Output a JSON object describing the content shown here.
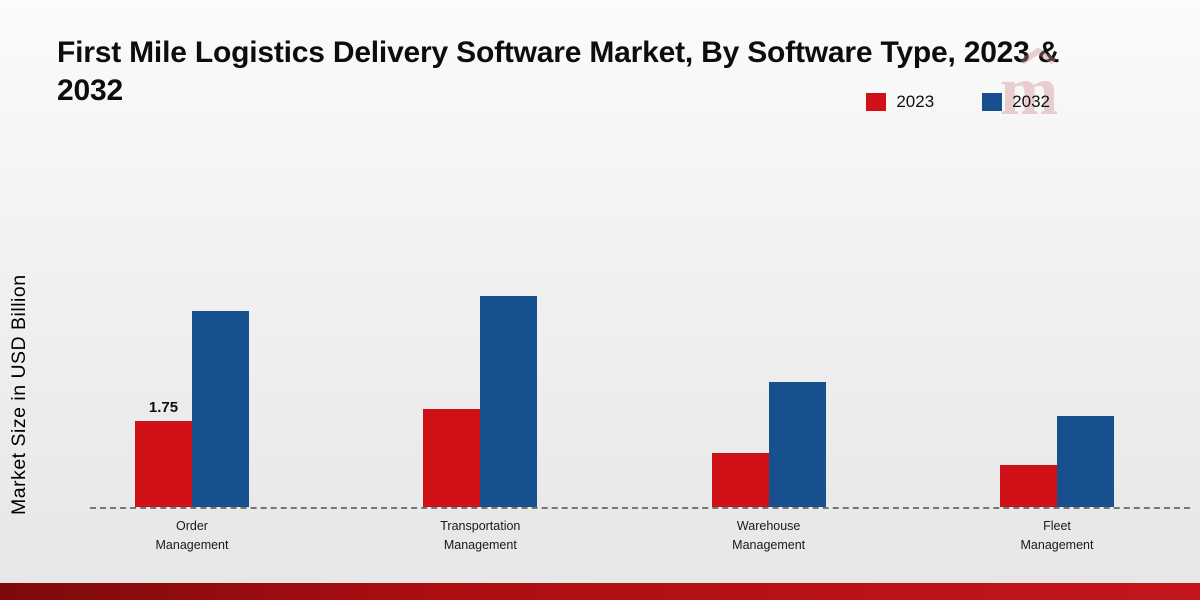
{
  "watermark_icon": "mrfr-logo",
  "chart_data": {
    "type": "bar",
    "title": "First Mile Logistics Delivery Software Market, By Software Type, 2023 & 2032",
    "xlabel": "",
    "ylabel": "Market Size in USD Billion",
    "categories": [
      "Order Management",
      "Transportation Management",
      "Warehouse Management",
      "Fleet Management"
    ],
    "series": [
      {
        "name": "2023",
        "color": "#cf1016",
        "values": [
          1.75,
          2.0,
          1.1,
          0.85
        ]
      },
      {
        "name": "2032",
        "color": "#17508e",
        "values": [
          4.0,
          4.3,
          2.55,
          1.85
        ]
      }
    ],
    "ylim": [
      0,
      5
    ],
    "gridlines": false,
    "legend_position": "top-right",
    "baseline_style": "dashed",
    "value_labels": [
      {
        "series": 0,
        "category": 0,
        "text": "1.75"
      }
    ]
  }
}
